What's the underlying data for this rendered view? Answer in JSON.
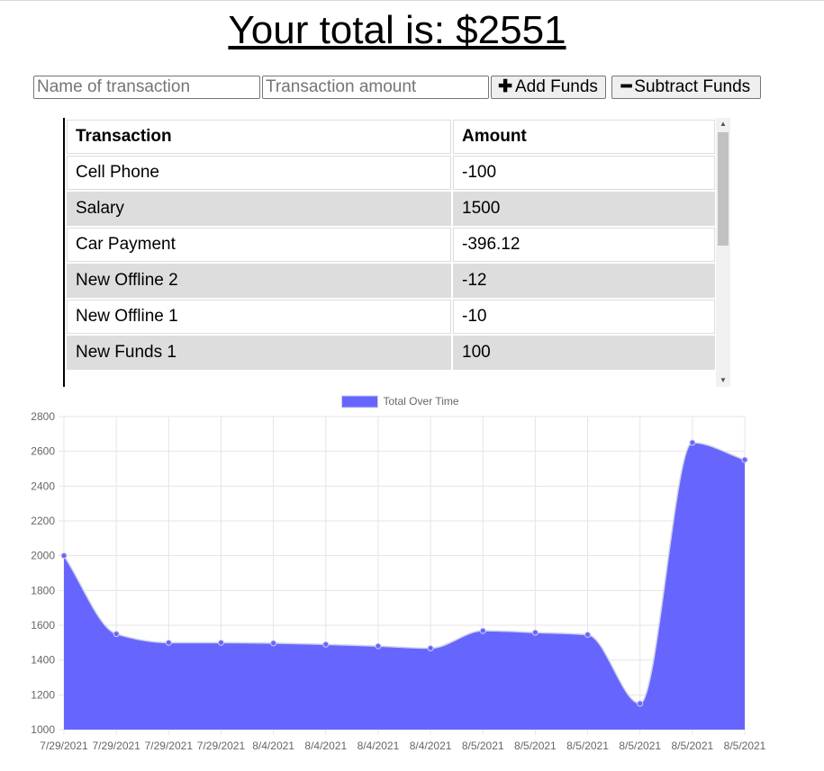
{
  "header": {
    "total_text": "Your total is: $2551"
  },
  "form": {
    "name_placeholder": "Name of transaction",
    "amount_placeholder": "Transaction amount",
    "add_label": "Add Funds",
    "subtract_label": "Subtract Funds"
  },
  "table": {
    "headers": [
      "Transaction",
      "Amount"
    ],
    "rows": [
      {
        "name": "Cell Phone",
        "amount": "-100"
      },
      {
        "name": "Salary",
        "amount": "1500"
      },
      {
        "name": "Car Payment",
        "amount": "-396.12"
      },
      {
        "name": "New Offline 2",
        "amount": "-12"
      },
      {
        "name": "New Offline 1",
        "amount": "-10"
      },
      {
        "name": "New Funds 1",
        "amount": "100"
      }
    ]
  },
  "chart_data": {
    "type": "area",
    "series": [
      {
        "name": "Total Over Time",
        "color": "#6666ff",
        "values": [
          2000,
          1550,
          1500,
          1500,
          1497,
          1490,
          1480,
          1468,
          1568,
          1558,
          1546,
          1150,
          2650,
          2551
        ]
      }
    ],
    "categories": [
      "7/29/2021",
      "7/29/2021",
      "7/29/2021",
      "7/29/2021",
      "8/4/2021",
      "8/4/2021",
      "8/4/2021",
      "8/4/2021",
      "8/5/2021",
      "8/5/2021",
      "8/5/2021",
      "8/5/2021",
      "8/5/2021",
      "8/5/2021"
    ],
    "ylim": [
      1000,
      2800
    ],
    "yticks": [
      1000,
      1200,
      1400,
      1600,
      1800,
      2000,
      2200,
      2400,
      2600,
      2800
    ],
    "grid": true,
    "legend": "top-center",
    "xlabel": "",
    "ylabel": ""
  }
}
